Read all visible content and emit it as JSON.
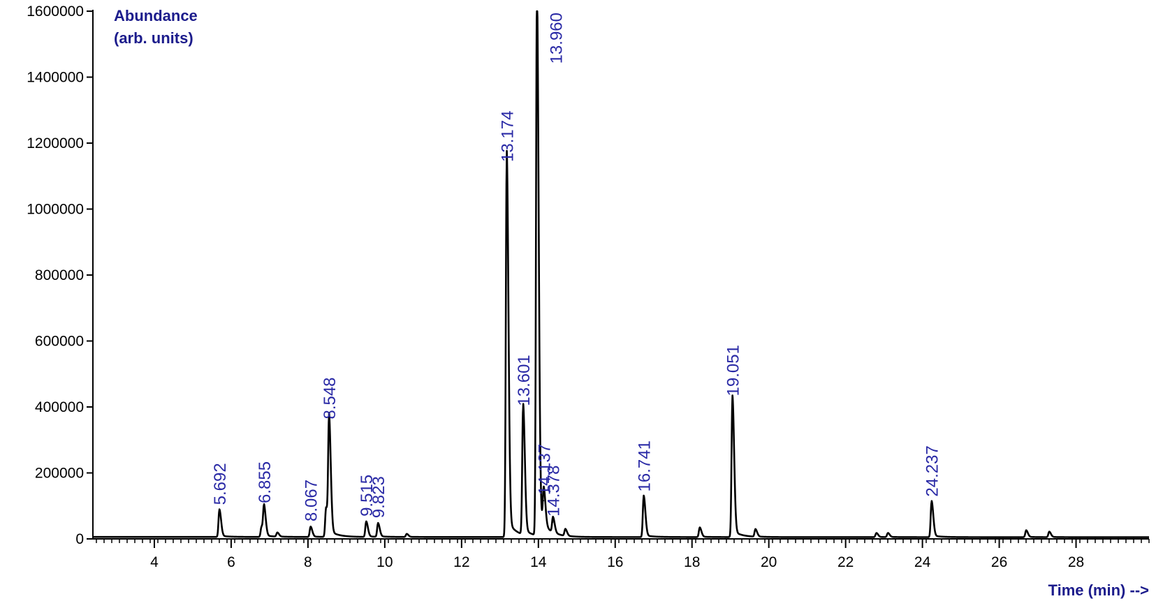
{
  "chart_data": {
    "type": "line",
    "ylabel_line1": "Abundance",
    "ylabel_line2": "(arb. units)",
    "xlabel": "Time (min) -->",
    "xlim": [
      2.4,
      29.9
    ],
    "ylim": [
      0,
      1600000
    ],
    "x_ticks": [
      4,
      6,
      8,
      10,
      12,
      14,
      16,
      18,
      20,
      22,
      24,
      26,
      28
    ],
    "y_ticks": [
      0,
      200000,
      400000,
      600000,
      800000,
      1000000,
      1200000,
      1400000,
      1600000
    ],
    "grid": false,
    "line_color": "#000000",
    "label_color": "#2a2aa6",
    "baseline": 6000,
    "peaks": [
      {
        "label": "5.692",
        "x": 5.692,
        "y": 80000,
        "labeled": true
      },
      {
        "label": "",
        "x": 6.79,
        "y": 30000,
        "labeled": false
      },
      {
        "label": "6.855",
        "x": 6.855,
        "y": 85000,
        "labeled": true
      },
      {
        "label": "",
        "x": 7.2,
        "y": 12000,
        "labeled": false
      },
      {
        "label": "8.067",
        "x": 8.067,
        "y": 30000,
        "labeled": true
      },
      {
        "label": "",
        "x": 8.47,
        "y": 85000,
        "labeled": false
      },
      {
        "label": "8.548",
        "x": 8.548,
        "y": 340000,
        "labeled": true
      },
      {
        "label": "9.515",
        "x": 9.515,
        "y": 45000,
        "labeled": true
      },
      {
        "label": "9.823",
        "x": 9.823,
        "y": 40000,
        "labeled": true
      },
      {
        "label": "",
        "x": 10.57,
        "y": 9000,
        "labeled": false
      },
      {
        "label": "13.174",
        "x": 13.174,
        "y": 1120000,
        "labeled": true
      },
      {
        "label": "13.601",
        "x": 13.601,
        "y": 380000,
        "labeled": true
      },
      {
        "label": "13.960",
        "x": 13.96,
        "y": 1600000,
        "labeled": true
      },
      {
        "label": "14.137",
        "x": 14.137,
        "y": 110000,
        "labeled": true
      },
      {
        "label": "14.378",
        "x": 14.378,
        "y": 45000,
        "labeled": true
      },
      {
        "label": "",
        "x": 14.7,
        "y": 20000,
        "labeled": false
      },
      {
        "label": "16.741",
        "x": 16.741,
        "y": 120000,
        "labeled": true
      },
      {
        "label": "",
        "x": 18.2,
        "y": 28000,
        "labeled": false
      },
      {
        "label": "19.051",
        "x": 19.051,
        "y": 410000,
        "labeled": true
      },
      {
        "label": "",
        "x": 19.65,
        "y": 22000,
        "labeled": false
      },
      {
        "label": "",
        "x": 22.8,
        "y": 12000,
        "labeled": false
      },
      {
        "label": "",
        "x": 23.1,
        "y": 12000,
        "labeled": false
      },
      {
        "label": "24.237",
        "x": 24.237,
        "y": 105000,
        "labeled": true
      },
      {
        "label": "",
        "x": 26.7,
        "y": 20000,
        "labeled": false
      },
      {
        "label": "",
        "x": 27.3,
        "y": 16000,
        "labeled": false
      }
    ]
  }
}
